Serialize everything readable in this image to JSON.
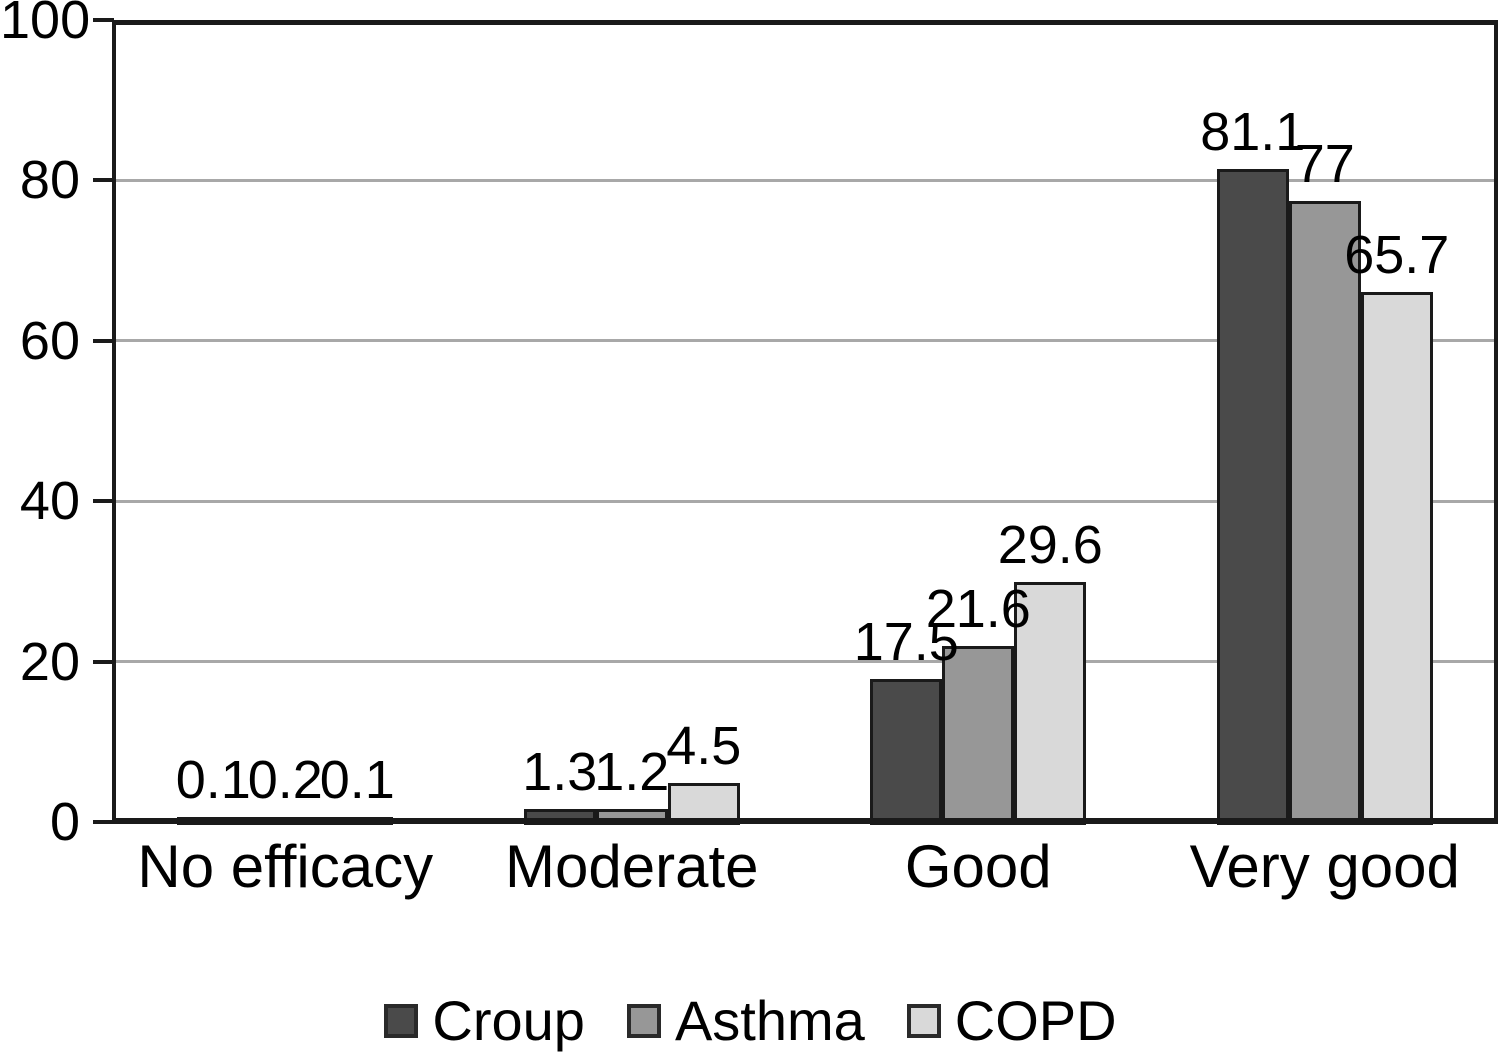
{
  "chart_data": {
    "type": "bar",
    "title": "",
    "categories": [
      "No efficacy",
      "Moderate",
      "Good",
      "Very good"
    ],
    "series": [
      {
        "name": "Croup",
        "color": "#4a4a4a",
        "values": [
          0.1,
          1.3,
          17.5,
          81.1
        ]
      },
      {
        "name": "Asthma",
        "color": "#979797",
        "values": [
          0.2,
          1.2,
          21.6,
          77
        ]
      },
      {
        "name": "COPD",
        "color": "#d9d9d9",
        "values": [
          0.1,
          4.5,
          29.6,
          65.7
        ]
      }
    ],
    "value_labels": [
      [
        "0.1",
        "1.3",
        "17.5",
        "81.1"
      ],
      [
        "0.2",
        "1.2",
        "21.6",
        "77"
      ],
      [
        "0.1",
        "4.5",
        "29.6",
        "65.7"
      ]
    ],
    "xlabel": "",
    "ylabel": "",
    "ylim": [
      0,
      100
    ],
    "yticks": [
      0,
      20,
      40,
      60,
      80,
      100
    ],
    "grid": true,
    "legend_position": "bottom",
    "colors": {
      "bar_border": "#1a1a1a",
      "axis": "#1a1a1a",
      "gridline": "#a8a8a8",
      "text": "#000000",
      "background": "#ffffff"
    }
  }
}
